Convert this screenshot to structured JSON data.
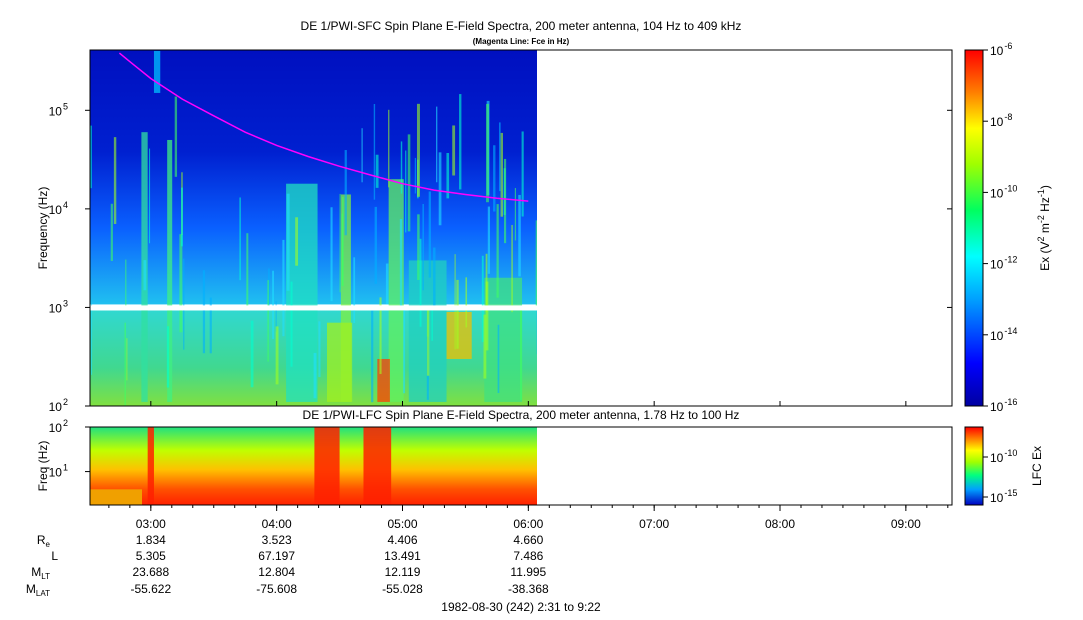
{
  "chart_data": [
    {
      "type": "heatmap",
      "title": "DE 1/PWI-SFC  Spin Plane E-Field Spectra, 200 meter antenna, 104 Hz to 409 kHz",
      "subtitle": "(Magenta Line: Fce in Hz)",
      "ylabel": "Frequency (Hz)",
      "yscale": "log",
      "ylim": [
        100,
        409000
      ],
      "yticks": [
        {
          "base": "10",
          "exp": "2",
          "value": 100
        },
        {
          "base": "10",
          "exp": "3",
          "value": 1000
        },
        {
          "base": "10",
          "exp": "4",
          "value": 10000
        },
        {
          "base": "10",
          "exp": "5",
          "value": 100000
        }
      ],
      "data_extent_hours": [
        2.52,
        6.08
      ],
      "data_gap_hz": 1000,
      "colorbar": {
        "label_parts": [
          "Ex (V",
          "2",
          " m",
          "-2",
          " Hz",
          "-1",
          ")"
        ],
        "scale": "log",
        "range": [
          1e-16,
          1e-06
        ],
        "ticks": [
          {
            "base": "10",
            "exp": "-6",
            "value": -6
          },
          {
            "base": "10",
            "exp": "-8",
            "value": -8
          },
          {
            "base": "10",
            "exp": "-10",
            "value": -10
          },
          {
            "base": "10",
            "exp": "-12",
            "value": -12
          },
          {
            "base": "10",
            "exp": "-14",
            "value": -14
          },
          {
            "base": "10",
            "exp": "-16",
            "value": -16
          }
        ]
      },
      "fce_line": {
        "color": "#ff00ff",
        "x_hours": [
          2.75,
          2.85,
          3.0,
          3.25,
          3.5,
          3.75,
          4.0,
          4.25,
          4.5,
          4.75,
          5.0,
          5.25,
          5.5,
          5.75,
          6.0
        ],
        "y_hz": [
          380000,
          300000,
          210000,
          130000,
          88000,
          60000,
          44000,
          34000,
          27000,
          22000,
          18000,
          15500,
          14000,
          12800,
          12000
        ]
      }
    },
    {
      "type": "heatmap",
      "title": "DE 1/PWI-LFC  Spin Plane E-Field Spectra, 200 meter antenna, 1.78 Hz to 100 Hz",
      "ylabel": "Freq (Hz)",
      "yscale": "log",
      "ylim": [
        1.78,
        100
      ],
      "yticks": [
        {
          "base": "10",
          "exp": "1",
          "value": 10
        },
        {
          "base": "10",
          "exp": "2",
          "value": 100
        }
      ],
      "data_extent_hours": [
        2.52,
        6.08
      ],
      "colorbar": {
        "label": "LFC Ex",
        "scale": "log",
        "ticks": [
          {
            "base": "10",
            "exp": "-10",
            "value": -10
          },
          {
            "base": "10",
            "exp": "-15",
            "value": -15
          }
        ]
      }
    }
  ],
  "x_axis": {
    "range_hours": [
      2.5167,
      9.3667
    ],
    "ticks": [
      {
        "label": "03:00",
        "hour": 3
      },
      {
        "label": "04:00",
        "hour": 4
      },
      {
        "label": "05:00",
        "hour": 5
      },
      {
        "label": "06:00",
        "hour": 6
      },
      {
        "label": "07:00",
        "hour": 7
      },
      {
        "label": "08:00",
        "hour": 8
      },
      {
        "label": "09:00",
        "hour": 9
      }
    ]
  },
  "ephemeris": {
    "rows": [
      {
        "name": "R",
        "sub": "e",
        "values": [
          "1.834",
          "3.523",
          "4.406",
          "4.660"
        ]
      },
      {
        "name": "L",
        "sub": "",
        "values": [
          "5.305",
          "67.197",
          "13.491",
          "7.486"
        ]
      },
      {
        "name": "M",
        "sub": "LT",
        "values": [
          "23.688",
          "12.804",
          "12.119",
          "11.995"
        ]
      },
      {
        "name": "M",
        "sub": "LAT",
        "values": [
          "-55.622",
          "-75.608",
          "-55.028",
          "-38.368"
        ]
      }
    ]
  },
  "footer": "1982-08-30 (242) 2:31 to 9:22"
}
